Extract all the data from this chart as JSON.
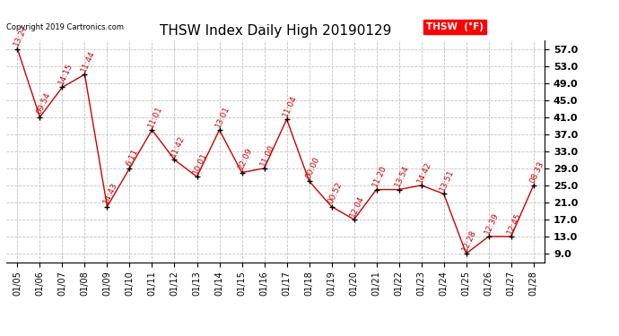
{
  "title": "THSW Index Daily High 20190129",
  "copyright": "Copyright 2019 Cartronics.com",
  "legend_label": "THSW  (°F)",
  "dates": [
    "01/05",
    "01/06",
    "01/07",
    "01/08",
    "01/09",
    "01/10",
    "01/11",
    "01/12",
    "01/13",
    "01/14",
    "01/15",
    "01/16",
    "01/17",
    "01/18",
    "01/19",
    "01/20",
    "01/21",
    "01/22",
    "01/23",
    "01/24",
    "01/25",
    "01/26",
    "01/27",
    "01/28"
  ],
  "values": [
    57.0,
    41.0,
    48.0,
    51.0,
    20.0,
    29.0,
    38.0,
    31.0,
    27.0,
    38.0,
    28.0,
    29.0,
    40.5,
    26.0,
    20.0,
    17.0,
    24.0,
    24.0,
    25.0,
    23.0,
    9.0,
    13.0,
    13.0,
    25.0
  ],
  "time_labels": [
    "13:27",
    "09:54",
    "14:15",
    "11:44",
    "14:43",
    "6:11",
    "11:01",
    "11:42",
    "10:01",
    "13:01",
    "22:09",
    "11:00",
    "11:04",
    "00:00",
    "00:52",
    "12:04",
    "11:20",
    "13:54",
    "14:42",
    "13:51",
    "12:28",
    "12:39",
    "12:45",
    "08:33"
  ],
  "line_color": "#cc0000",
  "marker_color": "#000000",
  "background_color": "#ffffff",
  "grid_color": "#bbbbbb",
  "ylim": [
    7.0,
    59.0
  ],
  "yticks": [
    9.0,
    13.0,
    17.0,
    21.0,
    25.0,
    29.0,
    33.0,
    37.0,
    41.0,
    45.0,
    49.0,
    53.0,
    57.0
  ],
  "title_fontsize": 11,
  "time_fontsize": 6.5,
  "tick_fontsize": 8,
  "xlabel_fontsize": 7
}
